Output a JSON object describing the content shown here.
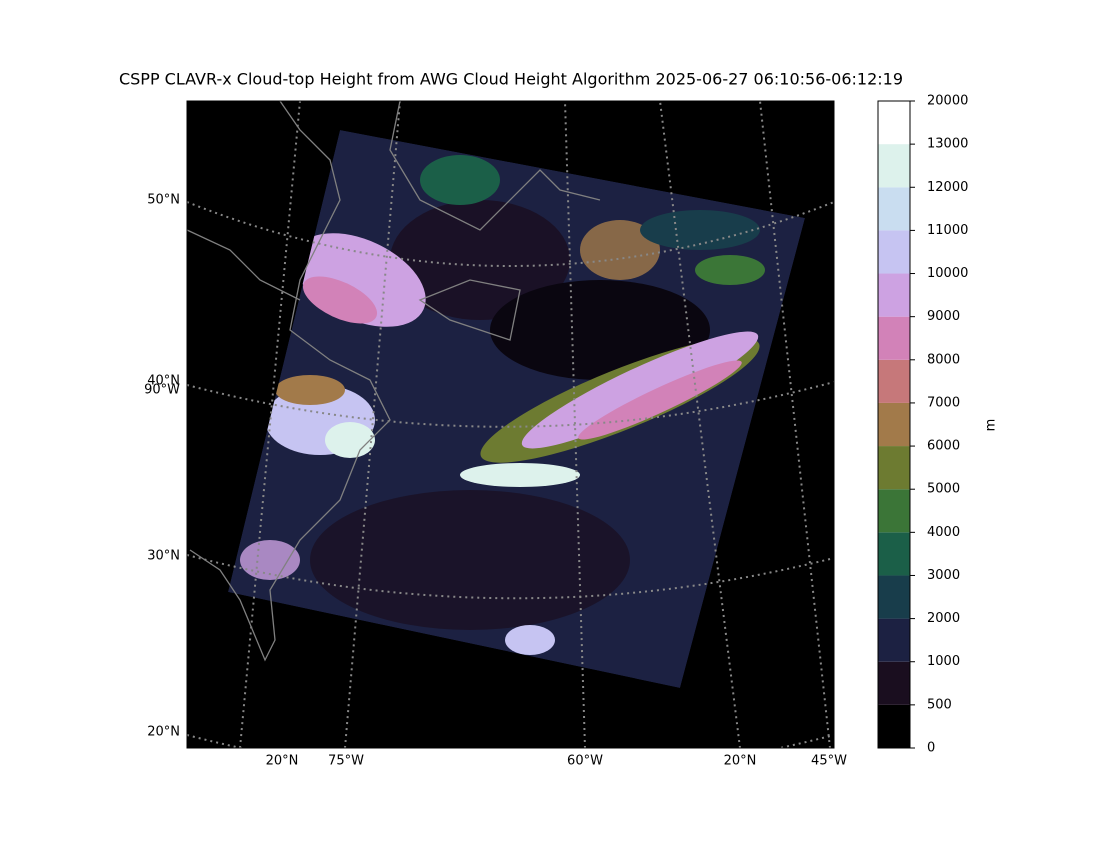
{
  "title": "CSPP CLAVR-x Cloud-top Height from AWG Cloud Height Algorithm 2025-06-27 06:10:56-06:12:19",
  "map": {
    "left_labels": [
      "50°N",
      "40°N",
      "90°W",
      "30°N",
      "20°N"
    ],
    "bottom_labels": [
      "20°N",
      "75°W",
      "60°W",
      "20°N",
      "45°W"
    ]
  },
  "colorbar": {
    "label": "m",
    "ticks": [
      0,
      500,
      1000,
      2000,
      3000,
      4000,
      5000,
      6000,
      7000,
      8000,
      9000,
      10000,
      11000,
      12000,
      13000,
      20000
    ],
    "colors": [
      "#000000",
      "#1a0e1f",
      "#1c2142",
      "#183d4b",
      "#1b5f48",
      "#3b7537",
      "#6d7b31",
      "#a27a4a",
      "#c6787a",
      "#d282b8",
      "#cda2e2",
      "#c6c4f2",
      "#c9ddf0",
      "#ddf2ec",
      "#ffffff"
    ]
  }
}
